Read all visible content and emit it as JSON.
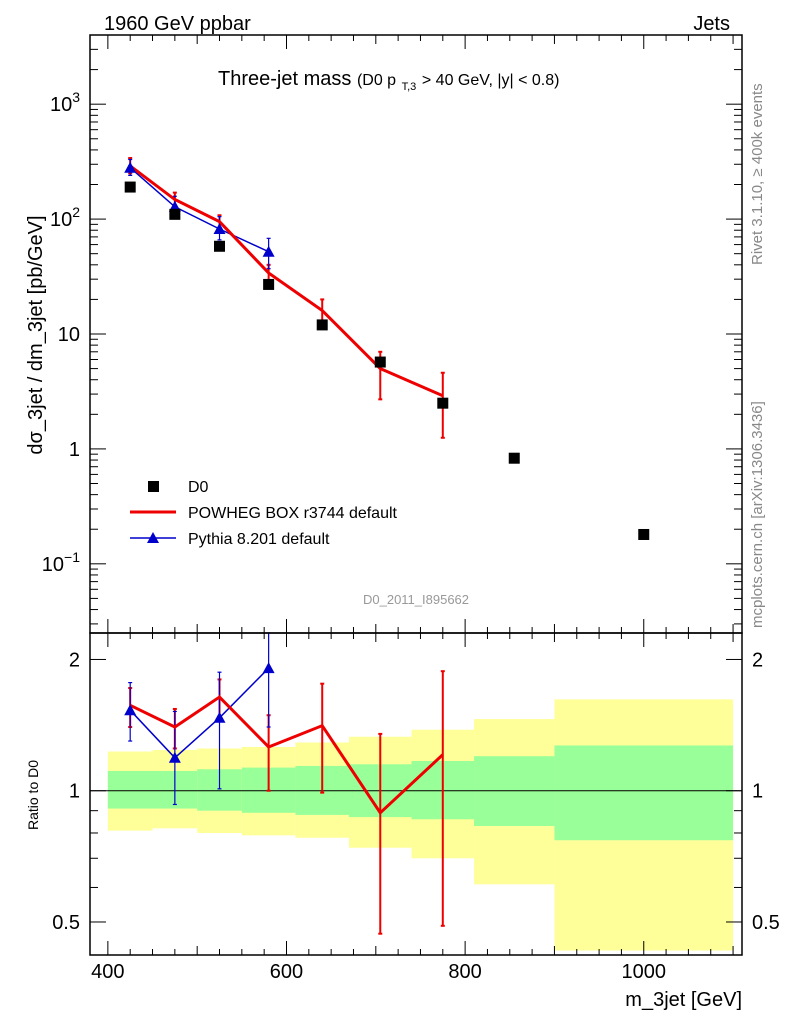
{
  "header": {
    "left": "1960 GeV ppbar",
    "right": "Jets",
    "analysis_id": "D0_2011_I895662"
  },
  "side_notes": {
    "rivet": "Rivet 3.1.10, ≥ 400k events",
    "mcplots": "mcplots.cern.ch [arXiv:1306.3436]"
  },
  "colors": {
    "data": "#000000",
    "powheg": "#ee0000",
    "pythia": "#0000cc",
    "band_outer": "#ffff99",
    "band_inner": "#99ff99"
  },
  "chart_data": [
    {
      "type": "scatter",
      "title_main": "Three-jet mass",
      "title_cut_prefix": "(D0 p",
      "title_cut_sub": "T,3",
      "title_cut_suffix": " > 40 GeV, |y| < 0.8)",
      "ylabel": "dσ_3jet / dm_3jet [pb/GeV]",
      "yscale": "log",
      "ylim": [
        0.025,
        4000
      ],
      "xlim": [
        380,
        1110
      ],
      "y_tick_labels": [
        {
          "value": 1000,
          "base": "10",
          "exp": "3"
        },
        {
          "value": 100,
          "base": "10",
          "exp": "2"
        },
        {
          "value": 10,
          "base": "10",
          "exp": ""
        },
        {
          "value": 1,
          "base": "1",
          "exp": ""
        },
        {
          "value": 0.1,
          "base": "10",
          "exp": "−1"
        }
      ],
      "legend": [
        {
          "key": "data",
          "label": "D0"
        },
        {
          "key": "powheg",
          "label": "POWHEG BOX r3744 default"
        },
        {
          "key": "pythia",
          "label": "Pythia 8.201 default"
        }
      ],
      "legend_placement": "bottom-left",
      "data": {
        "x": [
          425,
          475,
          525,
          580,
          640,
          705,
          775,
          855,
          1000
        ],
        "y": [
          190,
          110,
          58,
          27,
          12,
          5.7,
          2.5,
          0.83,
          0.18
        ]
      },
      "powheg": {
        "x": [
          425,
          475,
          525,
          580,
          640,
          705,
          775
        ],
        "y": [
          290,
          148,
          95,
          34,
          16,
          5.0,
          2.9
        ],
        "err_up": [
          340,
          170,
          108,
          40,
          20,
          7.0,
          4.6
        ],
        "err_down": [
          250,
          128,
          82,
          28,
          12.5,
          2.7,
          1.25
        ]
      },
      "pythia": {
        "x": [
          425,
          475,
          525,
          580
        ],
        "y": [
          280,
          128,
          82,
          52
        ],
        "err_up": [
          330,
          158,
          105,
          68
        ],
        "err_down": [
          240,
          108,
          66,
          37
        ]
      }
    },
    {
      "type": "scatter",
      "ylabel": "Ratio to D0",
      "xlabel": "m_3jet [GeV]",
      "ylim": [
        0.42,
        2.3
      ],
      "xlim": [
        380,
        1110
      ],
      "y_tick_labels": [
        {
          "value": 0.5,
          "label": "0.5"
        },
        {
          "value": 1,
          "label": "1"
        },
        {
          "value": 2,
          "label": "2"
        }
      ],
      "x_tick_labels": [
        {
          "value": 400,
          "label": "400"
        },
        {
          "value": 600,
          "label": "600"
        },
        {
          "value": 800,
          "label": "800"
        },
        {
          "value": 1000,
          "label": "1000"
        }
      ],
      "bands": {
        "edges": [
          400,
          450,
          500,
          550,
          610,
          670,
          740,
          810,
          900,
          1100
        ],
        "outer_lo": [
          0.81,
          0.82,
          0.8,
          0.79,
          0.78,
          0.74,
          0.7,
          0.61,
          0.43
        ],
        "outer_hi": [
          1.23,
          1.24,
          1.25,
          1.26,
          1.29,
          1.33,
          1.38,
          1.46,
          1.62
        ],
        "inner_lo": [
          0.91,
          0.91,
          0.9,
          0.89,
          0.88,
          0.87,
          0.86,
          0.83,
          0.77
        ],
        "inner_hi": [
          1.11,
          1.11,
          1.12,
          1.13,
          1.14,
          1.15,
          1.17,
          1.2,
          1.27
        ]
      },
      "powheg": {
        "x": [
          425,
          475,
          525,
          580,
          640,
          705,
          775
        ],
        "y": [
          1.57,
          1.4,
          1.64,
          1.26,
          1.41,
          0.89,
          1.21
        ],
        "err_up": [
          1.72,
          1.54,
          1.8,
          1.49,
          1.76,
          1.35,
          1.88
        ],
        "err_down": [
          1.4,
          1.25,
          1.48,
          1.0,
          0.99,
          0.47,
          0.49
        ]
      },
      "pythia": {
        "x": [
          425,
          475,
          525,
          580
        ],
        "y": [
          1.53,
          1.19,
          1.47,
          1.91
        ],
        "err_up": [
          1.77,
          1.52,
          1.87,
          2.35
        ],
        "err_down": [
          1.3,
          0.93,
          1.01,
          1.4
        ]
      }
    }
  ]
}
